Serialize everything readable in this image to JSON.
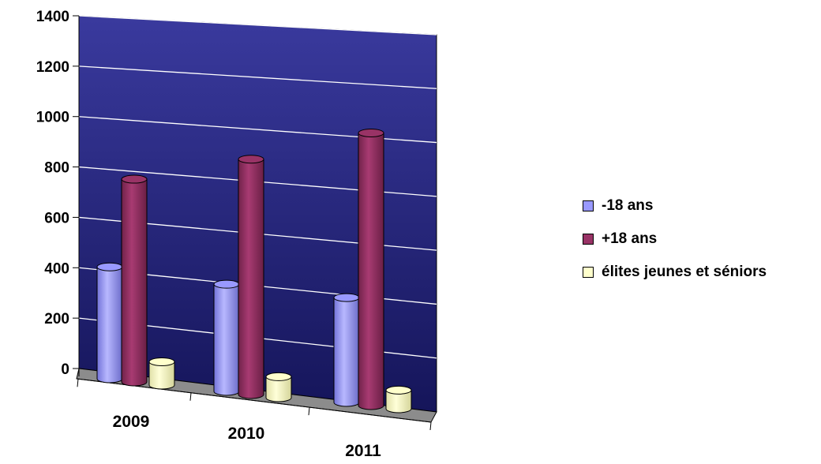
{
  "chart_data": {
    "type": "bar",
    "categories": [
      "2009",
      "2010",
      "2011"
    ],
    "series": [
      {
        "name": "-18 ans",
        "values": [
          480,
          460,
          450
        ],
        "color": "#9999ff"
      },
      {
        "name": "+18 ans",
        "values": [
          870,
          1010,
          1170
        ],
        "color": "#993366"
      },
      {
        "name": "élites jeunes et séniors",
        "values": [
          100,
          90,
          80
        ],
        "color": "#ffffcc"
      }
    ],
    "y_ticks": [
      "0",
      "200",
      "400",
      "600",
      "800",
      "1000",
      "1200",
      "1400"
    ],
    "ylim": [
      0,
      1400
    ],
    "grid": true,
    "legend_position": "right",
    "wall_color": "#2b2b80",
    "floor_color": "#808080"
  }
}
